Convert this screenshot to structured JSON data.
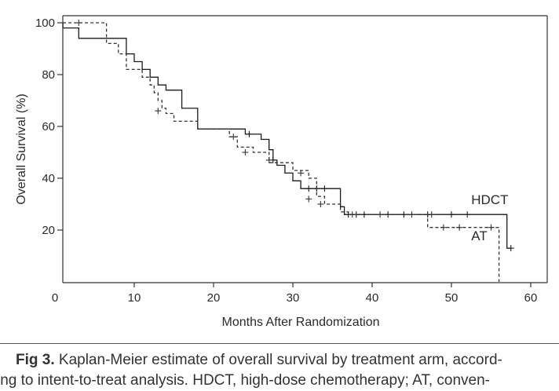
{
  "chart_data": {
    "type": "line",
    "xlabel": "Months After Randomization",
    "ylabel": "Overall Survival (%)",
    "xlim": [
      0,
      60
    ],
    "ylim": [
      0,
      100
    ],
    "x_ticks": [
      0,
      10,
      20,
      30,
      40,
      50,
      60
    ],
    "y_ticks": [
      20,
      40,
      60,
      80,
      100
    ],
    "grid": false,
    "legend": "none",
    "series": [
      {
        "name": "HDCT",
        "style": "solid",
        "color": "#1a1a1a",
        "steps": [
          [
            1,
            100
          ],
          [
            1,
            98
          ],
          [
            3,
            98
          ],
          [
            3,
            94
          ],
          [
            7,
            94
          ],
          [
            9,
            94
          ],
          [
            9,
            88
          ],
          [
            10,
            88
          ],
          [
            10,
            85
          ],
          [
            11,
            85
          ],
          [
            11,
            82
          ],
          [
            12,
            82
          ],
          [
            12,
            79
          ],
          [
            13,
            79
          ],
          [
            13,
            76
          ],
          [
            14,
            76
          ],
          [
            14,
            74
          ],
          [
            16,
            74
          ],
          [
            16,
            67
          ],
          [
            18,
            67
          ],
          [
            18,
            59
          ],
          [
            21,
            59
          ],
          [
            21,
            59
          ],
          [
            24,
            59
          ],
          [
            24,
            57
          ],
          [
            26,
            57
          ],
          [
            26,
            55
          ],
          [
            27,
            55
          ],
          [
            27,
            51
          ],
          [
            27.5,
            51
          ],
          [
            27.5,
            47
          ],
          [
            28,
            47
          ],
          [
            28,
            45
          ],
          [
            29,
            45
          ],
          [
            29,
            42
          ],
          [
            30,
            42
          ],
          [
            30,
            39
          ],
          [
            31,
            39
          ],
          [
            31,
            36
          ],
          [
            35,
            36
          ],
          [
            35,
            36
          ],
          [
            36,
            36
          ],
          [
            36,
            29
          ],
          [
            36.5,
            29
          ],
          [
            36.5,
            26
          ],
          [
            57,
            26
          ],
          [
            57,
            13
          ],
          [
            57.5,
            13
          ]
        ],
        "censored": [
          [
            24.5,
            57
          ],
          [
            27.5,
            47
          ],
          [
            32,
            36
          ],
          [
            33,
            36
          ],
          [
            34,
            36
          ],
          [
            37,
            26
          ],
          [
            38,
            26
          ],
          [
            39,
            26
          ],
          [
            42,
            26
          ],
          [
            44,
            26
          ],
          [
            47,
            26
          ],
          [
            50,
            26
          ],
          [
            52,
            26
          ],
          [
            57.5,
            13
          ]
        ]
      },
      {
        "name": "AT",
        "style": "dashed",
        "color": "#333333",
        "steps": [
          [
            1,
            100
          ],
          [
            6.5,
            100
          ],
          [
            6.5,
            92
          ],
          [
            8,
            92
          ],
          [
            8,
            88
          ],
          [
            9,
            88
          ],
          [
            9,
            82
          ],
          [
            11,
            82
          ],
          [
            11,
            79
          ],
          [
            12,
            79
          ],
          [
            12,
            76
          ],
          [
            12.5,
            76
          ],
          [
            12.5,
            73
          ],
          [
            13,
            73
          ],
          [
            13,
            70
          ],
          [
            13.5,
            70
          ],
          [
            13.5,
            67
          ],
          [
            14,
            67
          ],
          [
            14,
            65
          ],
          [
            15,
            65
          ],
          [
            15,
            62
          ],
          [
            18,
            62
          ],
          [
            18,
            59
          ],
          [
            22,
            59
          ],
          [
            22,
            56
          ],
          [
            23,
            56
          ],
          [
            23,
            52
          ],
          [
            25,
            52
          ],
          [
            25,
            50
          ],
          [
            27,
            50
          ],
          [
            27,
            46
          ],
          [
            30,
            46
          ],
          [
            30,
            43
          ],
          [
            32,
            43
          ],
          [
            32,
            40
          ],
          [
            33,
            40
          ],
          [
            33,
            33
          ],
          [
            34,
            33
          ],
          [
            34,
            30
          ],
          [
            36,
            30
          ],
          [
            36,
            27
          ],
          [
            37,
            27
          ],
          [
            37,
            26
          ],
          [
            47,
            26
          ],
          [
            47,
            21
          ],
          [
            56,
            21
          ],
          [
            56,
            0
          ]
        ],
        "censored": [
          [
            3,
            100
          ],
          [
            13,
            66
          ],
          [
            22.5,
            56
          ],
          [
            24,
            50
          ],
          [
            27,
            47
          ],
          [
            31,
            42
          ],
          [
            32,
            32
          ],
          [
            33.5,
            30
          ],
          [
            37.5,
            26
          ],
          [
            41,
            26
          ],
          [
            45,
            26
          ],
          [
            47.5,
            26
          ],
          [
            49,
            21
          ],
          [
            51,
            21
          ],
          [
            55,
            21
          ]
        ]
      }
    ],
    "annotations": [
      {
        "text": "HDCT",
        "x": 52.5,
        "y": 30
      },
      {
        "text": "AT",
        "x": 52.5,
        "y": 16
      }
    ]
  },
  "caption": {
    "label": "Fig 3.",
    "line1": " Kaplan-Meier estimate of overall survival by treatment arm, accord-",
    "line2": "ing to intent-to-treat analysis. HDCT, high-dose chemotherapy; AT, conven-"
  }
}
